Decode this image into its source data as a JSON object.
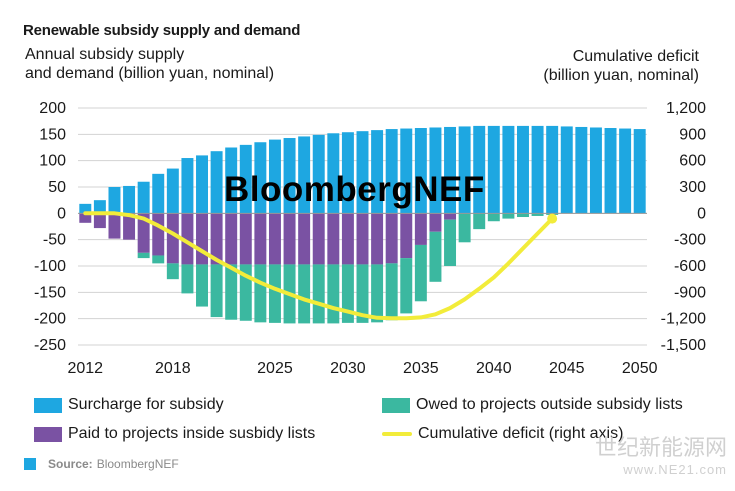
{
  "title": "Renewable subsidy supply and demand",
  "left_axis_title": [
    "Annual subsidy supply",
    "and demand (billion yuan, nominal)"
  ],
  "right_axis_title": [
    "Cumulative deficit",
    "(billion yuan, nominal)"
  ],
  "watermark": "BloombergNEF",
  "source_label": "Source:",
  "source_text": "BloombergNEF",
  "corner_watermark": [
    "世纪新能源网",
    "www.NE21.com"
  ],
  "colors": {
    "surcharge": "#1ea7e1",
    "owed": "#3bb8a0",
    "paid": "#7a52a3",
    "deficit": "#f2ec3a"
  },
  "chart_data": {
    "type": "bar",
    "stacked": true,
    "years": [
      2012,
      2013,
      2014,
      2015,
      2016,
      2017,
      2018,
      2019,
      2020,
      2021,
      2022,
      2023,
      2024,
      2025,
      2026,
      2027,
      2028,
      2029,
      2030,
      2031,
      2032,
      2033,
      2034,
      2035,
      2036,
      2037,
      2038,
      2039,
      2040,
      2041,
      2042,
      2043,
      2044,
      2045,
      2046,
      2047,
      2048,
      2049,
      2050
    ],
    "x_ticks": [
      2012,
      2018,
      2025,
      2030,
      2035,
      2040,
      2045,
      2050
    ],
    "y_left": {
      "min": -250,
      "max": 200,
      "ticks": [
        200,
        150,
        100,
        50,
        0,
        -50,
        -100,
        -150,
        -200,
        -250
      ]
    },
    "y_right": {
      "min": -1500,
      "max": 1200,
      "ticks": [
        "1,200",
        "900",
        "600",
        "300",
        "0",
        "-300",
        "-600",
        "-900",
        "-1,200",
        "-1,500"
      ]
    },
    "grid": true,
    "legend_position": "bottom",
    "series": [
      {
        "name": "Surcharge for subsidy",
        "axis": "left",
        "values": [
          18,
          25,
          50,
          52,
          60,
          75,
          85,
          105,
          110,
          118,
          125,
          130,
          135,
          140,
          143,
          146,
          149,
          152,
          154,
          156,
          158,
          160,
          161,
          162,
          163,
          164,
          165,
          166,
          166,
          166,
          166,
          166,
          166,
          165,
          164,
          163,
          162,
          161,
          160
        ]
      },
      {
        "name": "Paid to projects inside susbidy lists",
        "axis": "left",
        "values": [
          -18,
          -28,
          -48,
          -50,
          -75,
          -80,
          -95,
          -97,
          -97,
          -97,
          -97,
          -97,
          -97,
          -97,
          -97,
          -97,
          -97,
          -97,
          -97,
          -97,
          -97,
          -95,
          -85,
          -60,
          -35,
          -12,
          0,
          0,
          0,
          0,
          0,
          0,
          0,
          0,
          0,
          0,
          0,
          0,
          0
        ]
      },
      {
        "name": "Owed to projects outside subsidy lists",
        "axis": "left",
        "values": [
          0,
          0,
          0,
          0,
          -10,
          -15,
          -30,
          -55,
          -80,
          -100,
          -105,
          -107,
          -110,
          -111,
          -112,
          -112,
          -112,
          -112,
          -111,
          -111,
          -110,
          -108,
          -105,
          -107,
          -95,
          -88,
          -55,
          -30,
          -15,
          -10,
          -7,
          -5,
          -3,
          0,
          0,
          0,
          0,
          0,
          0
        ]
      },
      {
        "name": "Cumulative deficit (right axis)",
        "axis": "right",
        "type": "line",
        "x": [
          2012,
          2013,
          2014,
          2015,
          2016,
          2017,
          2018,
          2019,
          2020,
          2021,
          2022,
          2023,
          2024,
          2025,
          2026,
          2027,
          2028,
          2029,
          2030,
          2031,
          2032,
          2033,
          2034,
          2035,
          2036,
          2037,
          2038,
          2039,
          2040,
          2041,
          2042,
          2043,
          2044
        ],
        "values": [
          0,
          0,
          0,
          -20,
          -60,
          -140,
          -230,
          -330,
          -430,
          -530,
          -620,
          -710,
          -790,
          -860,
          -920,
          -980,
          -1030,
          -1080,
          -1120,
          -1160,
          -1190,
          -1195,
          -1195,
          -1185,
          -1150,
          -1080,
          -980,
          -860,
          -730,
          -570,
          -400,
          -230,
          -60
        ]
      }
    ]
  }
}
